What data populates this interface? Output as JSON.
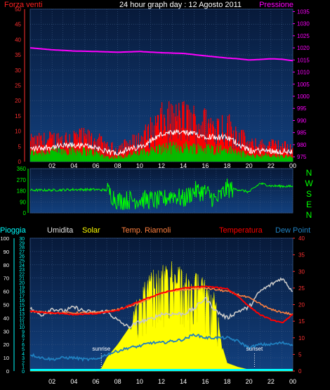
{
  "title": "24 hour graph day : 12 Agosto 2011",
  "colors": {
    "background": "#000000",
    "plot_bg_top": "#0a1c3e",
    "plot_bg_bottom": "#11397a",
    "grid": "#3c5a86",
    "wind_gust": "#ff0000",
    "wind_avg": "#00c000",
    "wind_white": "#ffffff",
    "pressure": "#ff00ff",
    "direction": "#00ff00",
    "rain": "#00ffff",
    "humidity": "#c8c8c8",
    "solar": "#ffff00",
    "riarnoli": "#ff8040",
    "temperature": "#ff0000",
    "dewpoint": "#2080c0"
  },
  "x_tick_labels": [
    "02",
    "04",
    "06",
    "08",
    "10",
    "12",
    "14",
    "16",
    "18",
    "20",
    "22",
    "00"
  ],
  "chart_data": [
    {
      "type": "line",
      "name": "wind-pressure",
      "left_axis_label": "Forza venti",
      "right_axis_label": "Pressione",
      "left_ticks": [
        "0",
        "5",
        "10",
        "15",
        "20",
        "25",
        "30",
        "35",
        "40",
        "45",
        "50"
      ],
      "right_ticks": [
        "975",
        "980",
        "985",
        "990",
        "995",
        "1000",
        "1005",
        "1010",
        "1015",
        "1020",
        "1025",
        "1030",
        "1035"
      ],
      "ylim_left": [
        0,
        50
      ],
      "ylim_right": [
        973,
        1036
      ],
      "x_range_hours": [
        0,
        24
      ],
      "pressure": {
        "x": [
          0,
          2,
          4,
          6,
          8,
          10,
          12,
          14,
          15,
          16,
          18,
          19,
          20,
          21,
          22,
          23,
          24
        ],
        "values": [
          1020,
          1019.2,
          1018.7,
          1018.5,
          1018.2,
          1018.5,
          1018.0,
          1017.7,
          1017.2,
          1016.7,
          1015.8,
          1015.5,
          1015.0,
          1015.2,
          1015.5,
          1015.3,
          1014.7
        ]
      },
      "wind_gust_envelope": {
        "x": [
          0,
          2,
          4,
          6,
          7,
          8,
          10,
          12,
          14,
          16,
          18,
          19,
          20,
          22,
          24
        ],
        "values": [
          7,
          8,
          9,
          8,
          5,
          5,
          8,
          15,
          16,
          14,
          13,
          10,
          6,
          6,
          5
        ]
      },
      "wind_avg_envelope": {
        "x": [
          0,
          2,
          4,
          6,
          7,
          8,
          10,
          12,
          14,
          16,
          18,
          19,
          20,
          22,
          24
        ],
        "values": [
          3,
          3.5,
          4,
          3,
          1.5,
          1.5,
          3,
          4.5,
          5,
          4.5,
          4,
          3,
          2,
          2,
          1.5
        ]
      }
    },
    {
      "type": "line",
      "name": "wind-direction",
      "right_axis_label": "N W S E N",
      "left_ticks": [
        "0",
        "90",
        "180",
        "270",
        "360"
      ],
      "ylim": [
        0,
        360
      ],
      "x_range_hours": [
        0,
        24
      ],
      "direction": {
        "x": [
          0,
          2,
          4,
          6,
          7,
          8,
          10,
          12,
          13,
          14,
          15,
          16,
          17,
          18,
          19,
          20,
          21,
          22,
          24
        ],
        "values": [
          185,
          185,
          190,
          190,
          185,
          100,
          110,
          100,
          150,
          110,
          180,
          170,
          100,
          200,
          190,
          170,
          240,
          220,
          215
        ]
      }
    },
    {
      "type": "line",
      "name": "temperature-solar",
      "legend": [
        "Pioggia",
        "Umidita",
        "Solar",
        "Temp. Riarnoli",
        "Temperatura",
        "Dew Point"
      ],
      "left_ticks": [
        "0",
        "10",
        "20",
        "30",
        "40",
        "50",
        "60",
        "70",
        "80",
        "90",
        "100"
      ],
      "rain_ticks": [
        "0",
        "1",
        "2",
        "3",
        "4",
        "5",
        "6",
        "7",
        "8",
        "9",
        "10",
        "11",
        "12",
        "13",
        "14",
        "15",
        "16",
        "17",
        "18",
        "19",
        "20",
        "21",
        "22",
        "23",
        "24",
        "25",
        "26",
        "27",
        "28",
        "29",
        "30"
      ],
      "right_ticks": [
        "0",
        "5",
        "10",
        "15",
        "20",
        "25",
        "30",
        "35",
        "40"
      ],
      "ylim_left": [
        0,
        100
      ],
      "ylim_right": [
        0,
        40
      ],
      "x_range_hours": [
        0,
        24
      ],
      "annotations": [
        {
          "text": "sunrise",
          "x": 6.5
        },
        {
          "text": "sunset",
          "x": 20.5
        }
      ],
      "humidity": {
        "x": [
          0,
          1,
          2,
          3,
          4,
          5,
          6,
          7,
          8,
          9,
          10,
          11,
          12,
          13,
          14,
          15,
          16,
          17,
          18,
          19,
          20,
          21,
          22,
          23,
          24
        ],
        "values": [
          47,
          42,
          47,
          45,
          48,
          45,
          44,
          45,
          38,
          33,
          37,
          39,
          43,
          43,
          43,
          47,
          55,
          45,
          40,
          45,
          48,
          60,
          65,
          70,
          60
        ]
      },
      "solar": {
        "x": [
          0,
          6,
          6.5,
          7,
          8,
          9,
          9.5,
          10,
          11,
          12,
          13,
          14,
          15,
          16,
          17,
          17.5,
          18,
          19,
          20,
          21,
          24
        ],
        "values": [
          0,
          0,
          2,
          10,
          20,
          32,
          45,
          60,
          72,
          78,
          80,
          76,
          72,
          66,
          55,
          20,
          6,
          3,
          1,
          0,
          0
        ]
      },
      "riarnoli": {
        "x": [
          0,
          2,
          4,
          6,
          8,
          10,
          12,
          14,
          16,
          18,
          20,
          22,
          24
        ],
        "values": [
          18,
          17.5,
          17.5,
          17.5,
          18.5,
          20.5,
          23.5,
          24.5,
          25,
          24,
          22,
          18.5,
          17
        ]
      },
      "temperature": {
        "x": [
          0,
          2,
          4,
          6,
          8,
          10,
          12,
          14,
          16,
          18,
          19,
          20,
          21,
          22,
          23,
          24
        ],
        "values": [
          18,
          17.5,
          17,
          17.3,
          18.2,
          21,
          23.5,
          25,
          25.5,
          24.8,
          22.5,
          19.5,
          17,
          15.5,
          14.5,
          17
        ]
      },
      "dewpoint": {
        "x": [
          0,
          1,
          2,
          3,
          4,
          5,
          6,
          7,
          8,
          9,
          10,
          11,
          12,
          13,
          14,
          15,
          16,
          17,
          18,
          19,
          20,
          21,
          22,
          23,
          24
        ],
        "values": [
          5,
          4,
          3.5,
          4,
          4,
          3.5,
          3.5,
          5,
          6,
          7,
          7.5,
          8.5,
          8.5,
          9,
          9.5,
          11,
          10,
          10,
          10,
          9,
          7,
          8,
          8,
          8.5,
          8
        ]
      },
      "rain": {
        "x": [
          0,
          24
        ],
        "values": [
          0,
          0
        ]
      }
    }
  ]
}
